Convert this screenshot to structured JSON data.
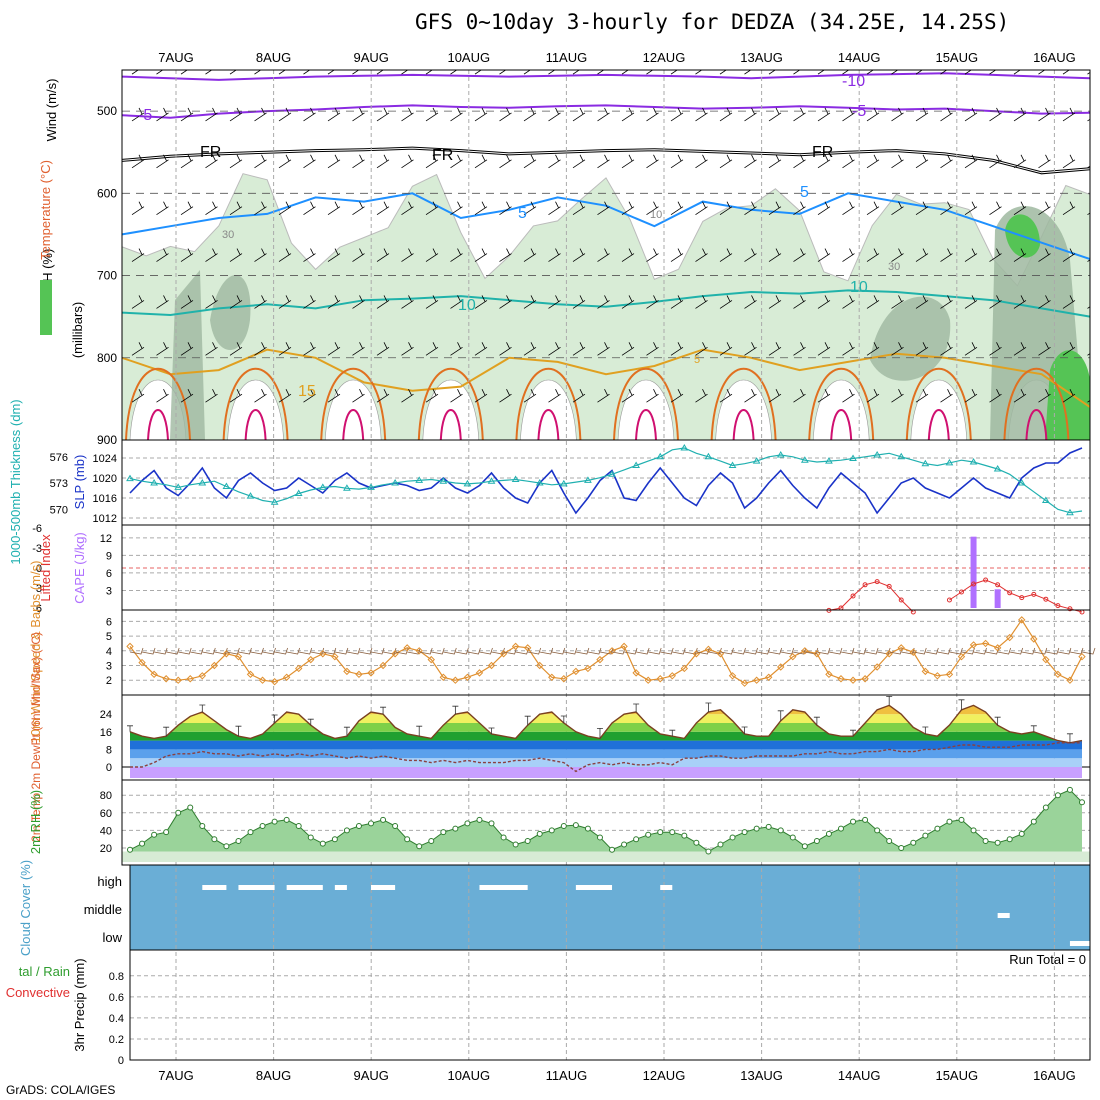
{
  "title": "GFS 0~10day 3-hourly for DEDZA (34.25E, 14.25S)",
  "credit": "GrADS: COLA/IGES",
  "dates": [
    "7AUG",
    "8AUG",
    "9AUG",
    "10AUG",
    "11AUG",
    "12AUG",
    "13AUG",
    "14AUG",
    "15AUG",
    "16AUG"
  ],
  "colors": {
    "rh_fill": "#d8ecd6",
    "rh_mid": "#9fb8a0",
    "rh_high": "#55c455",
    "temp_m10": "#8a2be2",
    "temp_fr": "#000000",
    "temp_5": "#1e90ff",
    "temp_10": "#20b2aa",
    "temp_15": "#e0a020",
    "temp_20": "#e07020",
    "temp_25": "#d01070",
    "slp": "#1a33c8",
    "thickness": "#20b0b0",
    "cape": "#b070ff",
    "li": "#e03030",
    "wind10": "#e09030",
    "barb10": "#8a6040",
    "cloud": "#6aaed6"
  },
  "chart_data": [
    {
      "type": "contour",
      "name": "upper-air cross-section",
      "ylabel_parts": [
        "RH (%)",
        "Temperature (°C)",
        "Wind (m/s)",
        "(millibars)"
      ],
      "yticks": [
        500,
        600,
        700,
        800,
        900
      ],
      "ylim": [
        450,
        900
      ],
      "contour_labels": [
        "-10",
        "-5",
        "-5",
        "FR",
        "FR",
        "FR",
        "5",
        "5",
        "10",
        "10",
        "15",
        "5",
        "10",
        "30",
        "30"
      ],
      "isotherm_levels_mb": {
        "-10": [
          458,
          460,
          462,
          460,
          458,
          457,
          456,
          457,
          458,
          457,
          456,
          457,
          458,
          460,
          458,
          456,
          455,
          454,
          456,
          458,
          460
        ],
        "-5": [
          505,
          508,
          503,
          500,
          498,
          495,
          493,
          495,
          496,
          494,
          493,
          495,
          497,
          496,
          494,
          496,
          498,
          497,
          500,
          503,
          502
        ],
        "FR": [
          560,
          555,
          552,
          550,
          548,
          547,
          545,
          548,
          552,
          550,
          548,
          547,
          549,
          551,
          553,
          550,
          548,
          552,
          560,
          575,
          570
        ],
        "5": [
          650,
          640,
          630,
          625,
          605,
          610,
          600,
          630,
          620,
          605,
          615,
          640,
          610,
          620,
          625,
          600,
          610,
          620,
          640,
          660,
          680
        ],
        "10": [
          745,
          748,
          740,
          735,
          740,
          730,
          728,
          725,
          730,
          735,
          738,
          732,
          725,
          720,
          722,
          718,
          720,
          725,
          730,
          740,
          750
        ],
        "15": [
          800,
          820,
          815,
          790,
          800,
          830,
          840,
          835,
          800,
          805,
          820,
          810,
          790,
          800,
          815,
          805,
          795,
          800,
          810,
          820,
          860
        ]
      }
    },
    {
      "type": "line",
      "name": "SLP and thickness",
      "ylabel_left": "1000-500mb Thickness (dm)",
      "ylabel_right": "SLP (mb)",
      "left_ticks": [
        570,
        573,
        576
      ],
      "right_ticks": [
        1012,
        1016,
        1020,
        1024
      ],
      "series": [
        {
          "name": "SLP (mb)",
          "values": [
            1017,
            1019.5,
            1021.5,
            1018,
            1016.5,
            1019,
            1022,
            1018,
            1016,
            1019.5,
            1021,
            1019,
            1017.5,
            1018,
            1020,
            1018.5,
            1017,
            1019.5,
            1021,
            1019,
            1018,
            1018.5,
            1019,
            1018.5,
            1017.5,
            1018,
            1020,
            1018,
            1017,
            1018.5,
            1021,
            1018,
            1016,
            1015,
            1019,
            1021.5,
            1017,
            1013,
            1016,
            1019.5,
            1021.5,
            1016,
            1015.5,
            1019,
            1022,
            1019,
            1016,
            1014.5,
            1018.5,
            1021,
            1019,
            1014,
            1016,
            1019,
            1021.5,
            1018.5,
            1016,
            1014,
            1018,
            1021,
            1019,
            1017,
            1013,
            1016,
            1019,
            1020,
            1018,
            1017,
            1016,
            1018,
            1020,
            1018,
            1017,
            1016,
            1020,
            1022,
            1023,
            1023,
            1025,
            1026
          ]
        },
        {
          "name": "1000-500mb Thickness (dm)",
          "values": [
            573.5,
            573.2,
            573,
            572.8,
            572.5,
            572.8,
            573,
            573.2,
            572.6,
            572,
            571.5,
            571,
            570.8,
            571.2,
            571.8,
            572.2,
            572.5,
            572.6,
            572.4,
            572.3,
            572.5,
            572.8,
            573,
            573.2,
            573.3,
            573.4,
            573.2,
            573,
            572.9,
            573,
            573.2,
            573.3,
            573.4,
            573.2,
            573,
            572.8,
            572.9,
            573.1,
            573.3,
            573.6,
            574,
            574.5,
            575,
            575.5,
            576,
            576.8,
            577,
            576.4,
            576,
            575.5,
            575,
            575.2,
            575.5,
            576,
            576.2,
            576,
            575.6,
            575.4,
            575.5,
            575.6,
            575.8,
            576,
            576.2,
            576.4,
            576,
            575.6,
            575.2,
            575,
            575.3,
            575.6,
            575.4,
            575,
            574.6,
            574,
            573,
            572,
            571,
            570,
            569.6,
            569.8
          ]
        }
      ]
    },
    {
      "type": "bar",
      "name": "CAPE and Lifted Index",
      "ylabel_left": "Lifted Index",
      "ylabel_right": "CAPE (J/kg)",
      "li_ticks": [
        "-6",
        "-3",
        "0",
        "3",
        "6"
      ],
      "cape_ticks": [
        3,
        6,
        9,
        12
      ],
      "cape_bars": [
        {
          "index": 70,
          "value": 12.2
        },
        {
          "index": 72,
          "value": 3.2
        }
      ],
      "lifted_index": [
        null,
        null,
        null,
        null,
        null,
        null,
        null,
        null,
        null,
        null,
        null,
        null,
        null,
        null,
        null,
        null,
        null,
        null,
        null,
        null,
        null,
        null,
        null,
        null,
        null,
        null,
        null,
        null,
        null,
        null,
        null,
        null,
        null,
        null,
        null,
        null,
        null,
        null,
        null,
        null,
        null,
        null,
        null,
        null,
        null,
        null,
        null,
        null,
        null,
        null,
        null,
        null,
        null,
        null,
        null,
        null,
        null,
        null,
        5.8,
        5.5,
        4.0,
        2.6,
        2.2,
        2.8,
        4.5,
        6.0,
        null,
        null,
        4.5,
        3.5,
        2.5,
        2.0,
        2.6,
        3.6,
        4.2,
        3.8,
        4.4,
        5.2,
        5.6,
        6.0
      ]
    },
    {
      "type": "line",
      "name": "10m wind speed and barbs",
      "ylabel": "10m Wind Speed & Barbs (m/s)",
      "yticks": [
        2,
        3,
        4,
        5,
        6
      ],
      "values": [
        4.3,
        3.2,
        2.4,
        2.1,
        2.0,
        2.1,
        2.3,
        3.0,
        3.8,
        3.6,
        2.4,
        2.0,
        1.9,
        2.2,
        2.8,
        3.4,
        3.8,
        3.6,
        2.6,
        2.4,
        2.5,
        3.0,
        3.8,
        4.2,
        4.0,
        3.4,
        2.2,
        2.0,
        2.2,
        2.5,
        3.0,
        3.8,
        4.3,
        4.2,
        3.0,
        2.2,
        2.1,
        2.6,
        2.8,
        3.4,
        4.0,
        4.3,
        2.5,
        2.0,
        2.1,
        2.3,
        2.8,
        3.8,
        4.1,
        3.8,
        2.3,
        1.8,
        2.0,
        2.2,
        2.9,
        3.6,
        4.0,
        3.8,
        2.4,
        2.1,
        2.0,
        2.1,
        2.9,
        3.8,
        4.2,
        3.9,
        2.6,
        2.3,
        2.4,
        3.6,
        4.4,
        4.5,
        4.2,
        4.9,
        6.1,
        4.8,
        3.4,
        2.4,
        2.0,
        3.6
      ]
    },
    {
      "type": "area",
      "name": "2m temperature and dewpoint",
      "ylabel": "2m Temp 2m DewPt (6hr Min/Max) (°C)",
      "yticks": [
        0,
        8,
        16,
        24
      ],
      "temp_max": [
        16,
        14,
        13,
        14,
        19,
        23,
        25,
        21,
        17,
        14,
        13,
        15,
        20,
        25,
        24,
        19,
        15,
        13,
        14,
        21,
        25,
        24,
        18,
        15,
        14,
        13,
        19,
        24,
        25,
        20,
        15,
        14,
        13,
        19,
        24,
        25,
        20,
        16,
        14,
        13,
        20,
        24,
        25,
        19,
        15,
        14,
        13,
        20,
        25,
        26,
        21,
        15,
        14,
        14,
        21,
        26,
        25,
        19,
        15,
        14,
        14,
        20,
        26,
        28,
        24,
        18,
        15,
        14,
        19,
        26,
        28,
        25,
        19,
        16,
        15,
        16,
        14,
        12,
        11,
        12
      ],
      "dewpoint": [
        0,
        0,
        2,
        5,
        6,
        6,
        7,
        6,
        6,
        5,
        6,
        5,
        6,
        5,
        6,
        5,
        6,
        5,
        4,
        5,
        4,
        5,
        4,
        3,
        3,
        2,
        3,
        2,
        3,
        2,
        2,
        2,
        3,
        3,
        4,
        3,
        2,
        -2,
        1,
        2,
        1,
        2,
        1,
        1,
        2,
        1,
        4,
        4,
        5,
        5,
        4,
        4,
        5,
        5,
        5,
        5,
        6,
        6,
        7,
        6,
        6,
        7,
        7,
        8,
        7,
        7,
        8,
        8,
        9,
        10,
        10,
        9,
        9,
        9,
        10,
        10,
        10,
        11,
        11,
        11
      ]
    },
    {
      "type": "area",
      "name": "2m relative humidity",
      "ylabel": "2m RH (%)",
      "yticks": [
        20,
        40,
        60,
        80
      ],
      "values": [
        18,
        25,
        35,
        38,
        60,
        66,
        45,
        30,
        22,
        28,
        38,
        45,
        50,
        52,
        45,
        32,
        25,
        30,
        40,
        45,
        48,
        52,
        45,
        30,
        22,
        28,
        38,
        42,
        48,
        52,
        48,
        32,
        24,
        28,
        36,
        40,
        45,
        46,
        42,
        32,
        18,
        24,
        30,
        35,
        38,
        38,
        34,
        26,
        16,
        24,
        32,
        38,
        42,
        44,
        40,
        32,
        22,
        28,
        36,
        42,
        50,
        52,
        40,
        28,
        20,
        26,
        34,
        42,
        50,
        52,
        40,
        28,
        26,
        30,
        36,
        50,
        66,
        80,
        86,
        72
      ]
    },
    {
      "type": "heatmap",
      "name": "cloud cover",
      "ylabel": "Cloud Cover (%)",
      "levels": [
        "high",
        "middle",
        "low"
      ],
      "clear_gaps": [
        {
          "level": "high",
          "start": 6,
          "end": 8
        },
        {
          "level": "high",
          "start": 9,
          "end": 12
        },
        {
          "level": "high",
          "start": 13,
          "end": 16
        },
        {
          "level": "high",
          "start": 17,
          "end": 18
        },
        {
          "level": "high",
          "start": 20,
          "end": 22
        },
        {
          "level": "high",
          "start": 29,
          "end": 33
        },
        {
          "level": "high",
          "start": 37,
          "end": 40
        },
        {
          "level": "high",
          "start": 44,
          "end": 45
        },
        {
          "level": "middle",
          "start": 72,
          "end": 73
        },
        {
          "level": "low",
          "start": 78,
          "end": 80
        }
      ]
    },
    {
      "type": "bar",
      "name": "3hr precipitation",
      "ylabel": "3hr Precip (mm)",
      "legend_left": [
        "tal / Rain",
        "Convective"
      ],
      "run_total": "Run Total = 0",
      "yticks": [
        "0",
        "0.2",
        "0.4",
        "0.6",
        "0.8"
      ],
      "values": []
    }
  ]
}
